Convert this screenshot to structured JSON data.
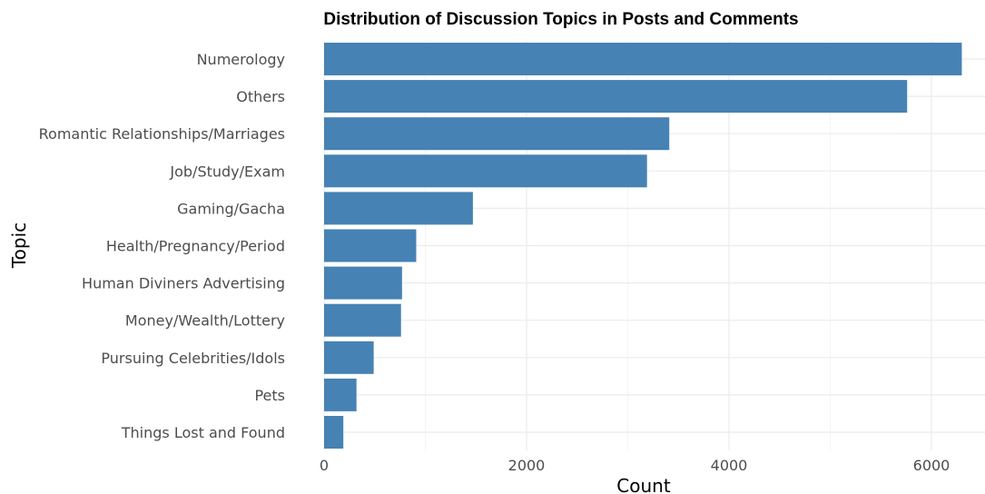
{
  "chart_data": {
    "type": "bar",
    "orientation": "horizontal",
    "title": "Distribution of Discussion Topics in Posts and Comments",
    "xlabel": "Count",
    "ylabel": "Topic",
    "categories": [
      "Numerology",
      "Others",
      "Romantic Relationships/Marriages",
      "Job/Study/Exam",
      "Gaming/Gacha",
      "Health/Pregnancy/Period",
      "Human Diviners Advertising",
      "Money/Wealth/Lottery",
      "Pursuing Celebrities/Idols",
      "Pets",
      "Things Lost and Found"
    ],
    "values": [
      6300,
      5760,
      3410,
      3190,
      1470,
      910,
      770,
      760,
      490,
      320,
      190
    ],
    "xlim": [
      0,
      6300
    ],
    "xticks": [
      0,
      2000,
      4000,
      6000
    ],
    "grid": true,
    "bar_color": "#4682b4"
  }
}
